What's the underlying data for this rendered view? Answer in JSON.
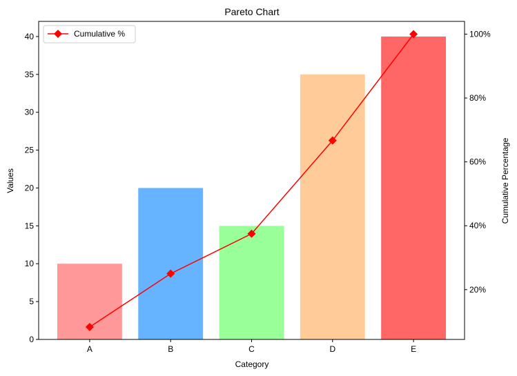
{
  "chart_data": {
    "type": "bar",
    "title": "Pareto Chart",
    "xlabel": "Category",
    "ylabel": "Values",
    "y2label": "Cumulative Percentage",
    "categories": [
      "A",
      "B",
      "C",
      "D",
      "E"
    ],
    "values": [
      10,
      20,
      15,
      35,
      40
    ],
    "bar_colors": [
      "#ff9999",
      "#66b3ff",
      "#99ff99",
      "#ffcc99",
      "#ff6666"
    ],
    "ylim": [
      0,
      42
    ],
    "yticks": [
      0,
      5,
      10,
      15,
      20,
      25,
      30,
      35,
      40
    ],
    "ytick_labels": [
      "0",
      "5",
      "10",
      "15",
      "20",
      "25",
      "30",
      "35",
      "40"
    ],
    "cumulative": {
      "name": "Cumulative %",
      "values": [
        8.3,
        25.0,
        37.5,
        66.7,
        100.0
      ],
      "color": "#ff0000",
      "marker": "diamond",
      "ylim": [
        4.4,
        104.0
      ],
      "yticks": [
        20,
        40,
        60,
        80,
        100
      ],
      "ytick_labels": [
        "20%",
        "40%",
        "60%",
        "80%",
        "100%"
      ]
    },
    "legend_position": "top-left",
    "grid": false
  }
}
